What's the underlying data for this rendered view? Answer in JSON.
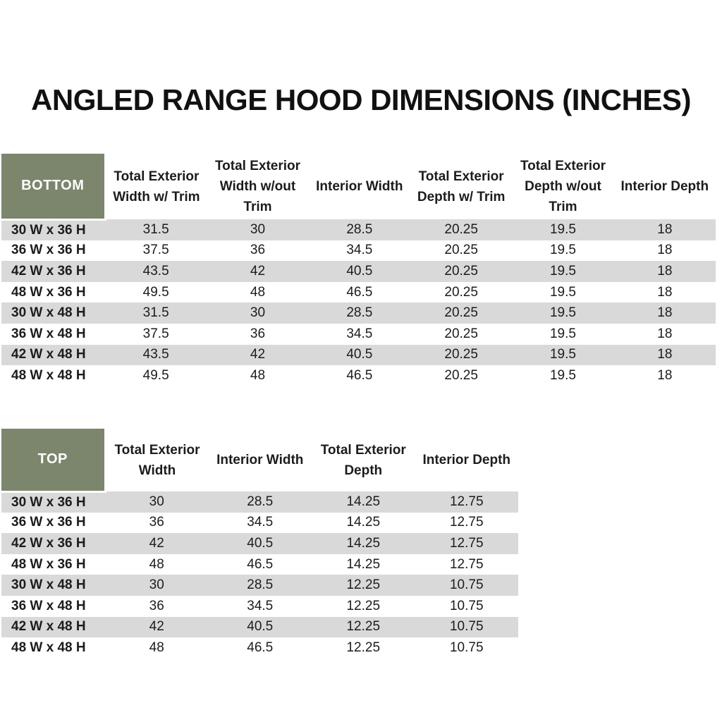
{
  "title": "ANGLED RANGE HOOD DIMENSIONS (INCHES)",
  "colors": {
    "header_green": "#7B866C",
    "stripe_gray": "#D9D9D9",
    "text": "#1c1c1c",
    "header_text": "#ffffff"
  },
  "bottom_table": {
    "label": "BOTTOM",
    "columns": [
      "Total Exterior Width w/ Trim",
      "Total Exterior Width w/out Trim",
      "Interior Width",
      "Total Exterior Depth w/ Trim",
      "Total Exterior Depth w/out Trim",
      "Interior Depth"
    ],
    "rows": [
      {
        "label": "30 W x 36 H",
        "values": [
          "31.5",
          "30",
          "28.5",
          "20.25",
          "19.5",
          "18"
        ]
      },
      {
        "label": "36 W x 36 H",
        "values": [
          "37.5",
          "36",
          "34.5",
          "20.25",
          "19.5",
          "18"
        ]
      },
      {
        "label": "42 W x 36 H",
        "values": [
          "43.5",
          "42",
          "40.5",
          "20.25",
          "19.5",
          "18"
        ]
      },
      {
        "label": "48 W x 36 H",
        "values": [
          "49.5",
          "48",
          "46.5",
          "20.25",
          "19.5",
          "18"
        ]
      },
      {
        "label": "30 W x 48 H",
        "values": [
          "31.5",
          "30",
          "28.5",
          "20.25",
          "19.5",
          "18"
        ]
      },
      {
        "label": "36 W x 48 H",
        "values": [
          "37.5",
          "36",
          "34.5",
          "20.25",
          "19.5",
          "18"
        ]
      },
      {
        "label": "42 W x 48 H",
        "values": [
          "43.5",
          "42",
          "40.5",
          "20.25",
          "19.5",
          "18"
        ]
      },
      {
        "label": "48 W x 48 H",
        "values": [
          "49.5",
          "48",
          "46.5",
          "20.25",
          "19.5",
          "18"
        ]
      }
    ]
  },
  "top_table": {
    "label": "TOP",
    "columns": [
      "Total Exterior Width",
      "Interior Width",
      "Total Exterior Depth",
      "Interior Depth"
    ],
    "rows": [
      {
        "label": "30 W x 36 H",
        "values": [
          "30",
          "28.5",
          "14.25",
          "12.75"
        ]
      },
      {
        "label": "36 W x 36 H",
        "values": [
          "36",
          "34.5",
          "14.25",
          "12.75"
        ]
      },
      {
        "label": "42 W x 36 H",
        "values": [
          "42",
          "40.5",
          "14.25",
          "12.75"
        ]
      },
      {
        "label": "48 W x 36 H",
        "values": [
          "48",
          "46.5",
          "14.25",
          "12.75"
        ]
      },
      {
        "label": "30 W x 48 H",
        "values": [
          "30",
          "28.5",
          "12.25",
          "10.75"
        ]
      },
      {
        "label": "36 W x 48 H",
        "values": [
          "36",
          "34.5",
          "12.25",
          "10.75"
        ]
      },
      {
        "label": "42 W x 48 H",
        "values": [
          "42",
          "40.5",
          "12.25",
          "10.75"
        ]
      },
      {
        "label": "48 W x 48 H",
        "values": [
          "48",
          "46.5",
          "12.25",
          "10.75"
        ]
      }
    ]
  }
}
